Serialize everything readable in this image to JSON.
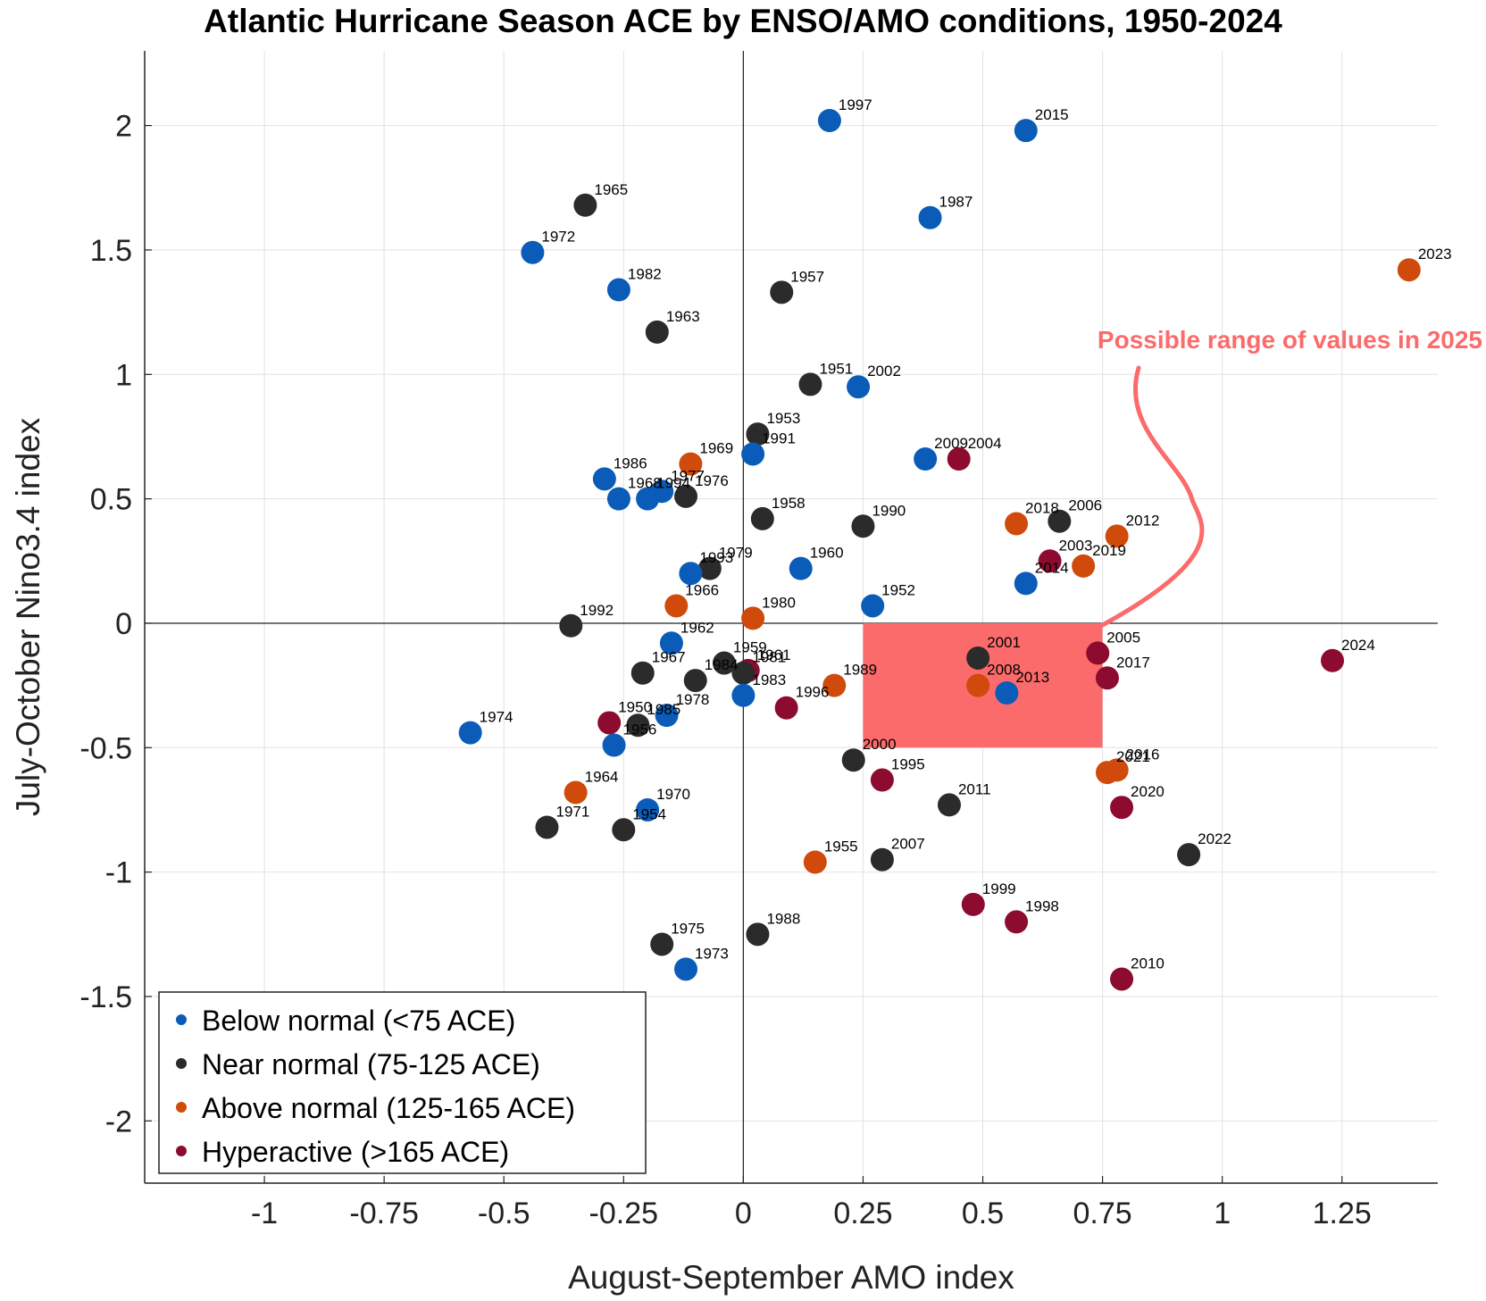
{
  "chart_data": {
    "type": "scatter",
    "title": "Atlantic Hurricane Season ACE by ENSO/AMO conditions, 1950-2024",
    "xlabel": "August-September AMO index",
    "ylabel": "July-October Nino3.4 index",
    "xlim": [
      -1.25,
      1.45
    ],
    "ylim": [
      -2.25,
      2.3
    ],
    "xticks": [
      "-1",
      "-0.75",
      "-0.5",
      "-0.25",
      "0",
      "0.25",
      "0.5",
      "0.75",
      "1",
      "1.25"
    ],
    "yticks": [
      "-2",
      "-1.5",
      "-1",
      "-0.5",
      "0",
      "0.5",
      "1",
      "1.5",
      "2"
    ],
    "grid": true,
    "legend_position": "bottom-left",
    "categories": [
      {
        "key": "below",
        "label": "Below normal (<75 ACE)",
        "color": "#0a5cb8"
      },
      {
        "key": "near",
        "label": "Near normal (75-125 ACE)",
        "color": "#2b2b2b"
      },
      {
        "key": "above",
        "label": "Above normal (125-165 ACE)",
        "color": "#d04a0c"
      },
      {
        "key": "hyper",
        "label": "Hyperactive (>165 ACE)",
        "color": "#8c0b2e"
      }
    ],
    "highlight_region": {
      "x": [
        0.25,
        0.75
      ],
      "y": [
        -0.5,
        0
      ],
      "color": "#fc6b6b"
    },
    "annotation": {
      "text": "Possible range of values in 2025",
      "color": "#fc6b6b"
    },
    "points": [
      {
        "year": "1950",
        "x": -0.28,
        "y": -0.4,
        "cat": "hyper"
      },
      {
        "year": "1951",
        "x": 0.14,
        "y": 0.96,
        "cat": "near"
      },
      {
        "year": "1952",
        "x": 0.27,
        "y": 0.07,
        "cat": "below"
      },
      {
        "year": "1953",
        "x": 0.03,
        "y": 0.76,
        "cat": "near"
      },
      {
        "year": "1954",
        "x": -0.25,
        "y": -0.83,
        "cat": "near"
      },
      {
        "year": "1955",
        "x": 0.15,
        "y": -0.96,
        "cat": "above"
      },
      {
        "year": "1956",
        "x": -0.27,
        "y": -0.49,
        "cat": "below"
      },
      {
        "year": "1957",
        "x": 0.08,
        "y": 1.33,
        "cat": "near"
      },
      {
        "year": "1958",
        "x": 0.04,
        "y": 0.42,
        "cat": "near"
      },
      {
        "year": "1959",
        "x": -0.04,
        "y": -0.16,
        "cat": "near"
      },
      {
        "year": "1960",
        "x": 0.12,
        "y": 0.22,
        "cat": "below"
      },
      {
        "year": "1961",
        "x": 0.01,
        "y": -0.19,
        "cat": "hyper"
      },
      {
        "year": "1962",
        "x": -0.15,
        "y": -0.08,
        "cat": "below"
      },
      {
        "year": "1963",
        "x": -0.18,
        "y": 1.17,
        "cat": "near"
      },
      {
        "year": "1964",
        "x": -0.35,
        "y": -0.68,
        "cat": "above"
      },
      {
        "year": "1965",
        "x": -0.33,
        "y": 1.68,
        "cat": "near"
      },
      {
        "year": "1966",
        "x": -0.14,
        "y": 0.07,
        "cat": "above"
      },
      {
        "year": "1967",
        "x": -0.21,
        "y": -0.2,
        "cat": "near"
      },
      {
        "year": "1968",
        "x": -0.26,
        "y": 0.5,
        "cat": "below"
      },
      {
        "year": "1969",
        "x": -0.11,
        "y": 0.64,
        "cat": "above"
      },
      {
        "year": "1970",
        "x": -0.2,
        "y": -0.75,
        "cat": "below"
      },
      {
        "year": "1971",
        "x": -0.41,
        "y": -0.82,
        "cat": "near"
      },
      {
        "year": "1972",
        "x": -0.44,
        "y": 1.49,
        "cat": "below"
      },
      {
        "year": "1973",
        "x": -0.12,
        "y": -1.39,
        "cat": "below"
      },
      {
        "year": "1974",
        "x": -0.57,
        "y": -0.44,
        "cat": "below"
      },
      {
        "year": "1975",
        "x": -0.17,
        "y": -1.29,
        "cat": "near"
      },
      {
        "year": "1976",
        "x": -0.12,
        "y": 0.51,
        "cat": "near"
      },
      {
        "year": "1977",
        "x": -0.17,
        "y": 0.53,
        "cat": "below"
      },
      {
        "year": "1978",
        "x": -0.16,
        "y": -0.37,
        "cat": "below"
      },
      {
        "year": "1979",
        "x": -0.07,
        "y": 0.22,
        "cat": "near"
      },
      {
        "year": "1980",
        "x": 0.02,
        "y": 0.02,
        "cat": "above"
      },
      {
        "year": "1981",
        "x": 0.0,
        "y": -0.2,
        "cat": "near"
      },
      {
        "year": "1982",
        "x": -0.26,
        "y": 1.34,
        "cat": "below"
      },
      {
        "year": "1983",
        "x": 0.0,
        "y": -0.29,
        "cat": "below"
      },
      {
        "year": "1984",
        "x": -0.1,
        "y": -0.23,
        "cat": "near"
      },
      {
        "year": "1985",
        "x": -0.22,
        "y": -0.41,
        "cat": "near"
      },
      {
        "year": "1986",
        "x": -0.29,
        "y": 0.58,
        "cat": "below"
      },
      {
        "year": "1987",
        "x": 0.39,
        "y": 1.63,
        "cat": "below"
      },
      {
        "year": "1988",
        "x": 0.03,
        "y": -1.25,
        "cat": "near"
      },
      {
        "year": "1989",
        "x": 0.19,
        "y": -0.25,
        "cat": "above"
      },
      {
        "year": "1990",
        "x": 0.25,
        "y": 0.39,
        "cat": "near"
      },
      {
        "year": "1991",
        "x": 0.02,
        "y": 0.68,
        "cat": "below"
      },
      {
        "year": "1992",
        "x": -0.36,
        "y": -0.01,
        "cat": "near"
      },
      {
        "year": "1993",
        "x": -0.11,
        "y": 0.2,
        "cat": "below"
      },
      {
        "year": "1994",
        "x": -0.2,
        "y": 0.5,
        "cat": "below"
      },
      {
        "year": "1995",
        "x": 0.29,
        "y": -0.63,
        "cat": "hyper"
      },
      {
        "year": "1996",
        "x": 0.09,
        "y": -0.34,
        "cat": "hyper"
      },
      {
        "year": "1997",
        "x": 0.18,
        "y": 2.02,
        "cat": "below"
      },
      {
        "year": "1998",
        "x": 0.57,
        "y": -1.2,
        "cat": "hyper"
      },
      {
        "year": "1999",
        "x": 0.48,
        "y": -1.13,
        "cat": "hyper"
      },
      {
        "year": "2000",
        "x": 0.23,
        "y": -0.55,
        "cat": "near"
      },
      {
        "year": "2001",
        "x": 0.49,
        "y": -0.14,
        "cat": "near"
      },
      {
        "year": "2002",
        "x": 0.24,
        "y": 0.95,
        "cat": "below"
      },
      {
        "year": "2003",
        "x": 0.64,
        "y": 0.25,
        "cat": "hyper"
      },
      {
        "year": "2004",
        "x": 0.45,
        "y": 0.66,
        "cat": "hyper"
      },
      {
        "year": "2005",
        "x": 0.74,
        "y": -0.12,
        "cat": "hyper"
      },
      {
        "year": "2006",
        "x": 0.66,
        "y": 0.41,
        "cat": "near"
      },
      {
        "year": "2007",
        "x": 0.29,
        "y": -0.95,
        "cat": "near"
      },
      {
        "year": "2008",
        "x": 0.49,
        "y": -0.25,
        "cat": "above"
      },
      {
        "year": "2009",
        "x": 0.38,
        "y": 0.66,
        "cat": "below"
      },
      {
        "year": "2010",
        "x": 0.79,
        "y": -1.43,
        "cat": "hyper"
      },
      {
        "year": "2011",
        "x": 0.43,
        "y": -0.73,
        "cat": "near"
      },
      {
        "year": "2012",
        "x": 0.78,
        "y": 0.35,
        "cat": "above"
      },
      {
        "year": "2013",
        "x": 0.55,
        "y": -0.28,
        "cat": "below"
      },
      {
        "year": "2014",
        "x": 0.59,
        "y": 0.16,
        "cat": "below"
      },
      {
        "year": "2015",
        "x": 0.59,
        "y": 1.98,
        "cat": "below"
      },
      {
        "year": "2016",
        "x": 0.78,
        "y": -0.59,
        "cat": "above"
      },
      {
        "year": "2017",
        "x": 0.76,
        "y": -0.22,
        "cat": "hyper"
      },
      {
        "year": "2018",
        "x": 0.57,
        "y": 0.4,
        "cat": "above"
      },
      {
        "year": "2019",
        "x": 0.71,
        "y": 0.23,
        "cat": "above"
      },
      {
        "year": "2020",
        "x": 0.79,
        "y": -0.74,
        "cat": "hyper"
      },
      {
        "year": "2021",
        "x": 0.76,
        "y": -0.6,
        "cat": "above"
      },
      {
        "year": "2022",
        "x": 0.93,
        "y": -0.93,
        "cat": "near"
      },
      {
        "year": "2023",
        "x": 1.39,
        "y": 1.42,
        "cat": "above"
      },
      {
        "year": "2024",
        "x": 1.23,
        "y": -0.15,
        "cat": "hyper"
      }
    ]
  }
}
